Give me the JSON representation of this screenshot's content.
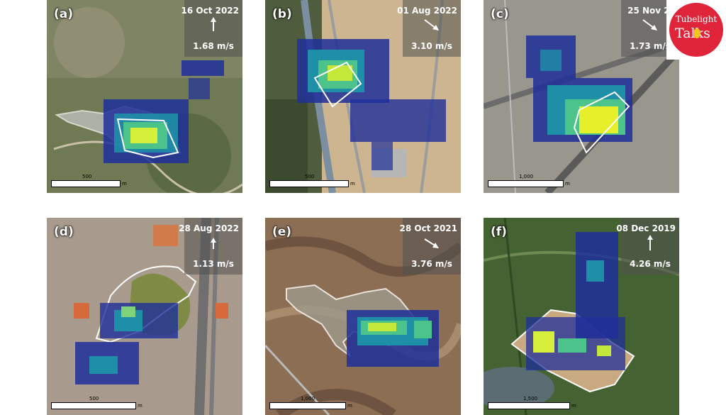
{
  "panels": [
    {
      "label": "(a)",
      "date": "16 Oct 2022",
      "speed": "1.68 m/s",
      "arrow": "up",
      "scale": "500",
      "unit": "m"
    },
    {
      "label": "(b)",
      "date": "01 Aug 2022",
      "speed": "3.10 m/s",
      "arrow": "down-right",
      "scale": "500",
      "unit": "m"
    },
    {
      "label": "(c)",
      "date": "25 Nov 20",
      "speed": "1.73 m/s",
      "arrow": "down-right",
      "scale": "1,000",
      "unit": "m"
    },
    {
      "label": "(d)",
      "date": "28 Aug 2022",
      "speed": "1.13 m/s",
      "arrow": "up",
      "scale": "500",
      "unit": "m"
    },
    {
      "label": "(e)",
      "date": "28 Oct 2021",
      "speed": "3.76 m/s",
      "arrow": "down-right",
      "scale": "1,000",
      "unit": "m"
    },
    {
      "label": "(f)",
      "date": "08 Dec 2019",
      "speed": "4.26 m/s",
      "arrow": "up",
      "scale": "1,500",
      "unit": "m"
    }
  ],
  "logo": {
    "line1": "Tubelight",
    "line2": "Talks",
    "color": "#e0253a"
  }
}
